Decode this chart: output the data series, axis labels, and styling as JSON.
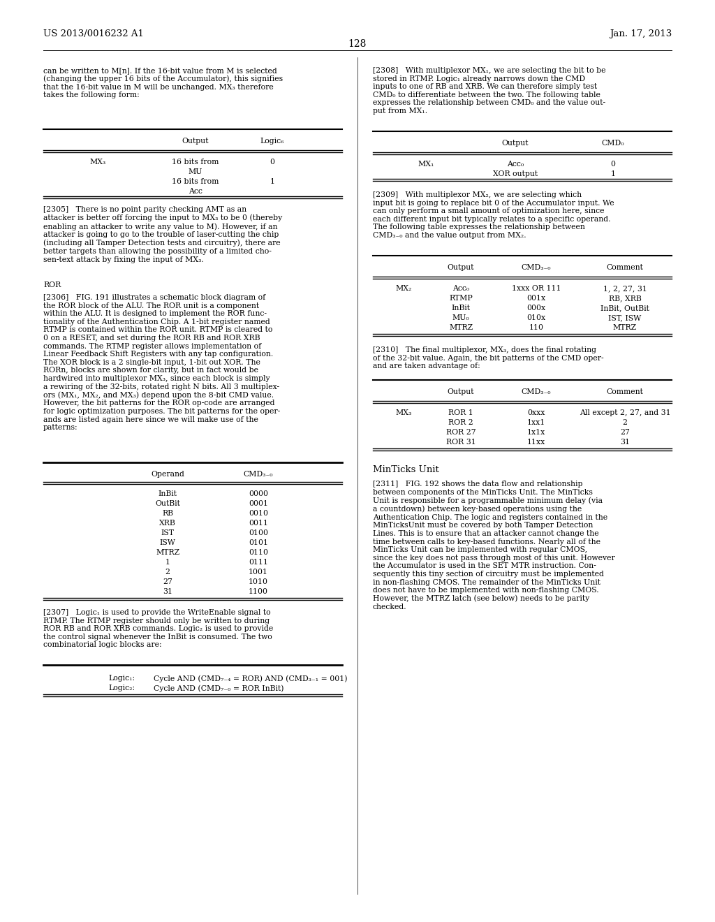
{
  "bg_color": "#ffffff",
  "header_left": "US 2013/0016232 A1",
  "header_right": "Jan. 17, 2013",
  "page_number": "128",
  "body_fontsize": 7.8,
  "table_fontsize": 7.8,
  "heading_fontsize": 8.5
}
